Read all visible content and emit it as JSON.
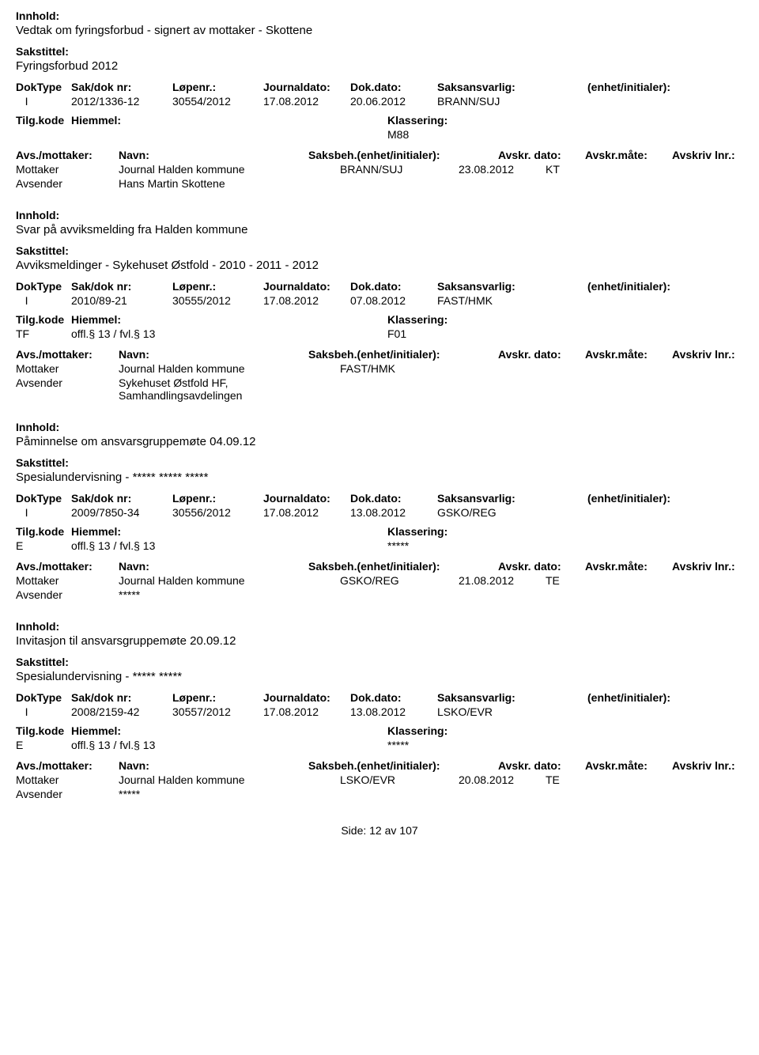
{
  "labels": {
    "innhold": "Innhold:",
    "sakstittel": "Sakstittel:",
    "doktype": "DokType",
    "saknr": "Sak/dok nr:",
    "lopenr": "Løpenr.:",
    "journaldato": "Journaldato:",
    "dokdato": "Dok.dato:",
    "saksansvarlig": "Saksansvarlig:",
    "enhet": "(enhet/initialer):",
    "tilgkode": "Tilg.kode",
    "hjemmel": "Hiemmel:",
    "klassering": "Klassering:",
    "avsmottaker": "Avs./mottaker:",
    "navn": "Navn:",
    "saksbeh": "Saksbeh.(enhet/initialer):",
    "avskrdato": "Avskr. dato:",
    "avskrmate": "Avskr.måte:",
    "avskrlnr": "Avskriv lnr.:",
    "mottaker": "Mottaker",
    "avsender": "Avsender",
    "side": "Side:",
    "av": "av"
  },
  "footer": {
    "page": "12",
    "total": "107"
  },
  "entries": [
    {
      "innhold": "Vedtak om fyringsforbud - signert av mottaker - Skottene",
      "sakstittel": "Fyringsforbud 2012",
      "doktype": "I",
      "saknr": "2012/1336-12",
      "lopenr": "30554/2012",
      "journaldato": "17.08.2012",
      "dokdato": "20.06.2012",
      "saksansvarlig": "BRANN/SUJ",
      "tilgkode": "",
      "hjemmel": "",
      "klassering": "M88",
      "parties": [
        {
          "role": "Mottaker",
          "name": "Journal Halden kommune",
          "saksbeh": "BRANN/SUJ",
          "avskrdato": "23.08.2012",
          "avskrmate": "KT"
        },
        {
          "role": "Avsender",
          "name": "Hans Martin Skottene",
          "saksbeh": "",
          "avskrdato": "",
          "avskrmate": ""
        }
      ]
    },
    {
      "innhold": "Svar på avviksmelding fra Halden kommune",
      "sakstittel": "Avviksmeldinger - Sykehuset Østfold - 2010 - 2011 - 2012",
      "doktype": "I",
      "saknr": "2010/89-21",
      "lopenr": "30555/2012",
      "journaldato": "17.08.2012",
      "dokdato": "07.08.2012",
      "saksansvarlig": "FAST/HMK",
      "tilgkode": "TF",
      "hjemmel": "offl.§ 13 / fvl.§ 13",
      "klassering": "F01",
      "parties": [
        {
          "role": "Mottaker",
          "name": "Journal Halden kommune",
          "saksbeh": "FAST/HMK",
          "avskrdato": "",
          "avskrmate": ""
        },
        {
          "role": "Avsender",
          "name": "Sykehuset Østfold HF, Samhandlingsavdelingen",
          "saksbeh": "",
          "avskrdato": "",
          "avskrmate": ""
        }
      ]
    },
    {
      "innhold": "Påminnelse om ansvarsgruppemøte 04.09.12",
      "sakstittel": "Spesialundervisning - ***** ***** *****",
      "doktype": "I",
      "saknr": "2009/7850-34",
      "lopenr": "30556/2012",
      "journaldato": "17.08.2012",
      "dokdato": "13.08.2012",
      "saksansvarlig": "GSKO/REG",
      "tilgkode": "E",
      "hjemmel": "offl.§ 13 / fvl.§ 13",
      "klassering": "*****",
      "parties": [
        {
          "role": "Mottaker",
          "name": "Journal Halden kommune",
          "saksbeh": "GSKO/REG",
          "avskrdato": "21.08.2012",
          "avskrmate": "TE"
        },
        {
          "role": "Avsender",
          "name": "*****",
          "saksbeh": "",
          "avskrdato": "",
          "avskrmate": ""
        }
      ]
    },
    {
      "innhold": "Invitasjon til ansvarsgruppemøte 20.09.12",
      "sakstittel": "Spesialundervisning - ***** *****",
      "doktype": "I",
      "saknr": "2008/2159-42",
      "lopenr": "30557/2012",
      "journaldato": "17.08.2012",
      "dokdato": "13.08.2012",
      "saksansvarlig": "LSKO/EVR",
      "tilgkode": "E",
      "hjemmel": "offl.§ 13 / fvl.§ 13",
      "klassering": "*****",
      "parties": [
        {
          "role": "Mottaker",
          "name": "Journal Halden kommune",
          "saksbeh": "LSKO/EVR",
          "avskrdato": "20.08.2012",
          "avskrmate": "TE"
        },
        {
          "role": "Avsender",
          "name": "*****",
          "saksbeh": "",
          "avskrdato": "",
          "avskrmate": ""
        }
      ]
    }
  ]
}
